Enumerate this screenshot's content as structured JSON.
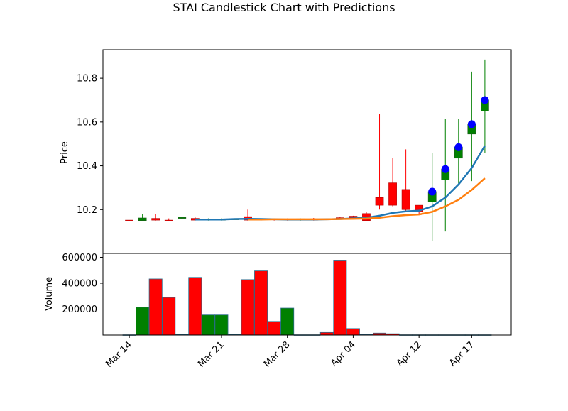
{
  "chart_data": [
    {
      "type": "candlestick",
      "title": "STAI Candlestick Chart with Predictions",
      "xlabel": "",
      "ylabel": "Price",
      "ylim": [
        10.0,
        10.93
      ],
      "yticks": [
        10.2,
        10.4,
        10.6,
        10.8
      ],
      "xlim": [
        -2,
        29
      ],
      "x_tick_positions": [
        0,
        7,
        12,
        17,
        22,
        26
      ],
      "x_tick_labels": [
        "Mar 14",
        "Mar 21",
        "Mar 28",
        "Apr 04",
        "Apr 12",
        "Apr 17"
      ],
      "up_color": "#008000",
      "down_color": "#ff0000",
      "candles": [
        {
          "x": 0,
          "open": 10.152,
          "high": 10.152,
          "low": 10.15,
          "close": 10.15
        },
        {
          "x": 1,
          "open": 10.15,
          "high": 10.18,
          "low": 10.15,
          "close": 10.162
        },
        {
          "x": 2,
          "open": 10.16,
          "high": 10.18,
          "low": 10.15,
          "close": 10.152
        },
        {
          "x": 3,
          "open": 10.152,
          "high": 10.16,
          "low": 10.148,
          "close": 10.15
        },
        {
          "x": 4,
          "open": 10.16,
          "high": 10.168,
          "low": 10.158,
          "close": 10.165
        },
        {
          "x": 5,
          "open": 10.16,
          "high": 10.168,
          "low": 10.15,
          "close": 10.152
        },
        {
          "x": 6,
          "open": 10.152,
          "high": 10.16,
          "low": 10.15,
          "close": 10.155
        },
        {
          "x": 7,
          "open": 10.152,
          "high": 10.16,
          "low": 10.15,
          "close": 10.156
        },
        {
          "x": 8,
          "open": 10.156,
          "high": 10.16,
          "low": 10.154,
          "close": 10.157
        },
        {
          "x": 9,
          "open": 10.168,
          "high": 10.2,
          "low": 10.15,
          "close": 10.152
        },
        {
          "x": 10,
          "open": 10.158,
          "high": 10.16,
          "low": 10.15,
          "close": 10.154
        },
        {
          "x": 11,
          "open": 10.158,
          "high": 10.16,
          "low": 10.15,
          "close": 10.154
        },
        {
          "x": 12,
          "open": 10.157,
          "high": 10.16,
          "low": 10.15,
          "close": 10.154
        },
        {
          "x": 13,
          "open": 10.152,
          "high": 10.16,
          "low": 10.15,
          "close": 10.158
        },
        {
          "x": 14,
          "open": 10.158,
          "high": 10.162,
          "low": 10.15,
          "close": 10.152
        },
        {
          "x": 15,
          "open": 10.156,
          "high": 10.16,
          "low": 10.154,
          "close": 10.157
        },
        {
          "x": 16,
          "open": 10.163,
          "high": 10.168,
          "low": 10.158,
          "close": 10.16
        },
        {
          "x": 17,
          "open": 10.17,
          "high": 10.172,
          "low": 10.16,
          "close": 10.163
        },
        {
          "x": 18,
          "open": 10.182,
          "high": 10.19,
          "low": 10.15,
          "close": 10.15
        },
        {
          "x": 19,
          "open": 10.255,
          "high": 10.635,
          "low": 10.2,
          "close": 10.22
        },
        {
          "x": 20,
          "open": 10.322,
          "high": 10.435,
          "low": 10.215,
          "close": 10.22
        },
        {
          "x": 21,
          "open": 10.292,
          "high": 10.475,
          "low": 10.195,
          "close": 10.2
        },
        {
          "x": 22,
          "open": 10.22,
          "high": 10.22,
          "low": 10.18,
          "close": 10.19
        }
      ],
      "prediction_candles": [
        {
          "x": 23,
          "open": 10.235,
          "high": 10.458,
          "low": 10.055,
          "close": 10.282
        },
        {
          "x": 24,
          "open": 10.335,
          "high": 10.615,
          "low": 10.1,
          "close": 10.385
        },
        {
          "x": 25,
          "open": 10.435,
          "high": 10.615,
          "low": 10.31,
          "close": 10.485
        },
        {
          "x": 26,
          "open": 10.545,
          "high": 10.83,
          "low": 10.33,
          "close": 10.59
        },
        {
          "x": 27,
          "open": 10.65,
          "high": 10.885,
          "low": 10.46,
          "close": 10.7
        }
      ],
      "prediction_points": {
        "color": "#0000ff",
        "x": [
          23,
          24,
          25,
          26,
          27
        ],
        "y": [
          10.282,
          10.385,
          10.485,
          10.59,
          10.7
        ]
      },
      "lines": [
        {
          "color": "#1f77b4",
          "x": [
            5,
            6,
            7,
            8,
            9,
            10,
            11,
            12,
            13,
            14,
            15,
            16,
            17,
            18,
            19,
            20,
            21,
            22,
            23,
            24,
            25,
            26,
            27
          ],
          "y": [
            10.155,
            10.155,
            10.155,
            10.157,
            10.158,
            10.157,
            10.156,
            10.155,
            10.155,
            10.155,
            10.156,
            10.157,
            10.16,
            10.163,
            10.172,
            10.185,
            10.192,
            10.195,
            10.215,
            10.255,
            10.315,
            10.39,
            10.492
          ]
        },
        {
          "color": "#ff7f0e",
          "x": [
            9,
            10,
            11,
            12,
            13,
            14,
            15,
            16,
            17,
            18,
            19,
            20,
            21,
            22,
            23,
            24,
            25,
            26,
            27
          ],
          "y": [
            10.155,
            10.155,
            10.156,
            10.156,
            10.156,
            10.156,
            10.156,
            10.157,
            10.158,
            10.159,
            10.163,
            10.17,
            10.175,
            10.178,
            10.19,
            10.215,
            10.245,
            10.29,
            10.343
          ]
        }
      ]
    },
    {
      "type": "bar",
      "ylabel": "Volume",
      "ylim": [
        0,
        630000
      ],
      "yticks": [
        200000,
        400000,
        600000
      ],
      "ytick_labels": [
        "200000",
        "400000",
        "600000"
      ],
      "x": [
        0,
        1,
        2,
        3,
        4,
        5,
        6,
        7,
        8,
        9,
        10,
        11,
        12,
        13,
        14,
        15,
        16,
        17,
        18,
        19,
        20,
        21,
        22,
        23,
        24,
        25,
        26,
        27
      ],
      "values": [
        2000,
        215000,
        433000,
        290000,
        5000,
        445000,
        155000,
        155000,
        5000,
        428000,
        495000,
        105000,
        208000,
        2000,
        2000,
        20000,
        578000,
        50000,
        5000,
        15000,
        10000,
        2000,
        2000,
        2000,
        2000,
        2000,
        2000,
        2000
      ],
      "colors": [
        "red",
        "green",
        "red",
        "red",
        "green",
        "red",
        "green",
        "green",
        "green",
        "red",
        "red",
        "red",
        "green",
        "green",
        "green",
        "red",
        "red",
        "red",
        "red",
        "red",
        "red",
        "red",
        "red",
        "red",
        "red",
        "red",
        "red",
        "red"
      ]
    }
  ]
}
